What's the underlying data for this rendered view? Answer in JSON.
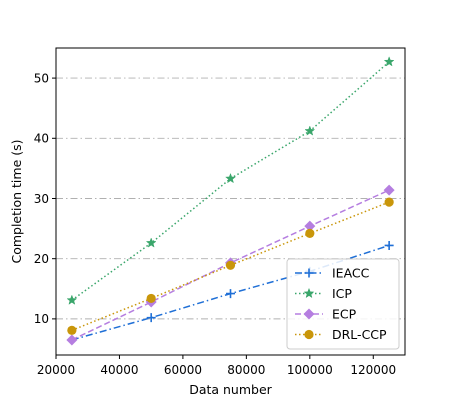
{
  "chart_data": {
    "type": "line",
    "title": "",
    "xlabel": "Data number",
    "ylabel": "Completion time (s)",
    "xlim": [
      20000,
      130000
    ],
    "ylim": [
      4,
      55
    ],
    "xticks": [
      20000,
      40000,
      60000,
      80000,
      100000,
      120000
    ],
    "yticks": [
      10,
      20,
      30,
      40,
      50
    ],
    "xtick_labels": [
      "20000",
      "40000",
      "60000",
      "80000",
      "100000",
      "120000"
    ],
    "ytick_labels": [
      "10",
      "20",
      "30",
      "40",
      "50"
    ],
    "grid": "horizontal dash-dot",
    "legend_position": "lower-right",
    "x": [
      25000,
      50000,
      75000,
      100000,
      125000
    ],
    "series": [
      {
        "name": "IEACC",
        "values": [
          6.5,
          10.2,
          14.2,
          17.9,
          22.2
        ],
        "color": "#1f6fd6",
        "dash": "dashdot",
        "marker": "plus"
      },
      {
        "name": "ICP",
        "values": [
          13.1,
          22.6,
          33.3,
          41.2,
          52.7
        ],
        "color": "#3aa66b",
        "dash": "dotted",
        "marker": "star"
      },
      {
        "name": "ECP",
        "values": [
          6.5,
          12.8,
          19.3,
          25.4,
          31.4
        ],
        "color": "#b57ee0",
        "dash": "dashed",
        "marker": "diamond"
      },
      {
        "name": "DRL-CCP",
        "values": [
          8.1,
          13.4,
          18.9,
          24.2,
          29.4
        ],
        "color": "#c9960a",
        "dash": "dotted",
        "marker": "circle"
      }
    ]
  }
}
